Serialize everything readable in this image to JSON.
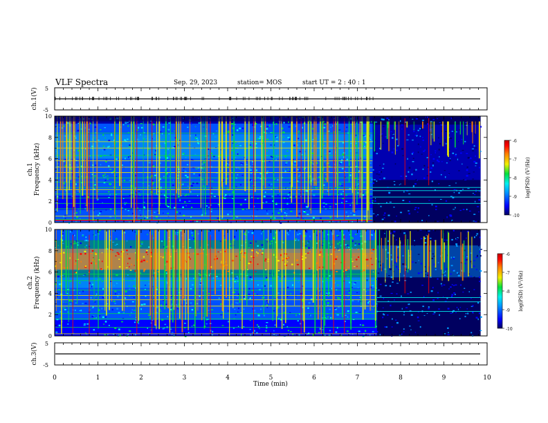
{
  "header": {
    "title": "VLF Spectra",
    "date": "Sep. 29, 2023",
    "station": "station= MOS",
    "start": "start  UT  =   2 : 40 : 1"
  },
  "chart_data": [
    {
      "type": "line",
      "panel": "ch1-voltage",
      "ylabel": "ch.1(V)",
      "ylim": [
        -5,
        5
      ],
      "yticks": [
        "5",
        "-5"
      ],
      "xlim": [
        0,
        10
      ],
      "series": [
        {
          "x": [
            0,
            9.85
          ],
          "values": [
            0,
            0
          ]
        }
      ]
    },
    {
      "type": "heatmap",
      "panel": "ch1-spectrogram",
      "ylabel_channel": "ch.1",
      "ylabel": "Frequency (kHz)",
      "ylim": [
        0,
        10
      ],
      "yticks": [
        "0",
        "2",
        "4",
        "6",
        "8",
        "10"
      ],
      "xlim": [
        0,
        10
      ],
      "data_end_min": 9.85,
      "transition_min": 7.35,
      "colorbar": {
        "label": "log(PSD) (V²/Hz)",
        "range": [
          -10,
          -6
        ],
        "ticks": [
          "-6",
          "-7",
          "-8",
          "-9",
          "-10"
        ]
      }
    },
    {
      "type": "heatmap",
      "panel": "ch2-spectrogram",
      "ylabel_channel": "ch.2",
      "ylabel": "Frequency (kHz)",
      "ylim": [
        0,
        10
      ],
      "yticks": [
        "0",
        "2",
        "4",
        "6",
        "8",
        "10"
      ],
      "xlim": [
        0,
        10
      ],
      "data_end_min": 9.85,
      "transition_min": 7.45,
      "colorbar": {
        "label": "log(PSD) (V²/Hz)",
        "range": [
          -10,
          -6
        ],
        "ticks": [
          "-6",
          "-7",
          "-8",
          "-9",
          "-10"
        ]
      }
    },
    {
      "type": "line",
      "panel": "ch3-voltage",
      "ylabel": "ch.3(V)",
      "ylim": [
        -5,
        5
      ],
      "yticks": [
        "5",
        "-5"
      ],
      "xlim": [
        0,
        10
      ],
      "xlabel": "Time (min)",
      "xticks": [
        "0",
        "1",
        "2",
        "3",
        "4",
        "5",
        "6",
        "7",
        "8",
        "9",
        "10"
      ],
      "series": [
        {
          "x": [
            0,
            9.85
          ],
          "values": [
            0,
            0
          ]
        }
      ]
    }
  ],
  "colorscale": [
    "#000060",
    "#0000ff",
    "#0096ff",
    "#00f0f0",
    "#00e040",
    "#f0f000",
    "#ff8000",
    "#ff0000",
    "#c00000"
  ]
}
